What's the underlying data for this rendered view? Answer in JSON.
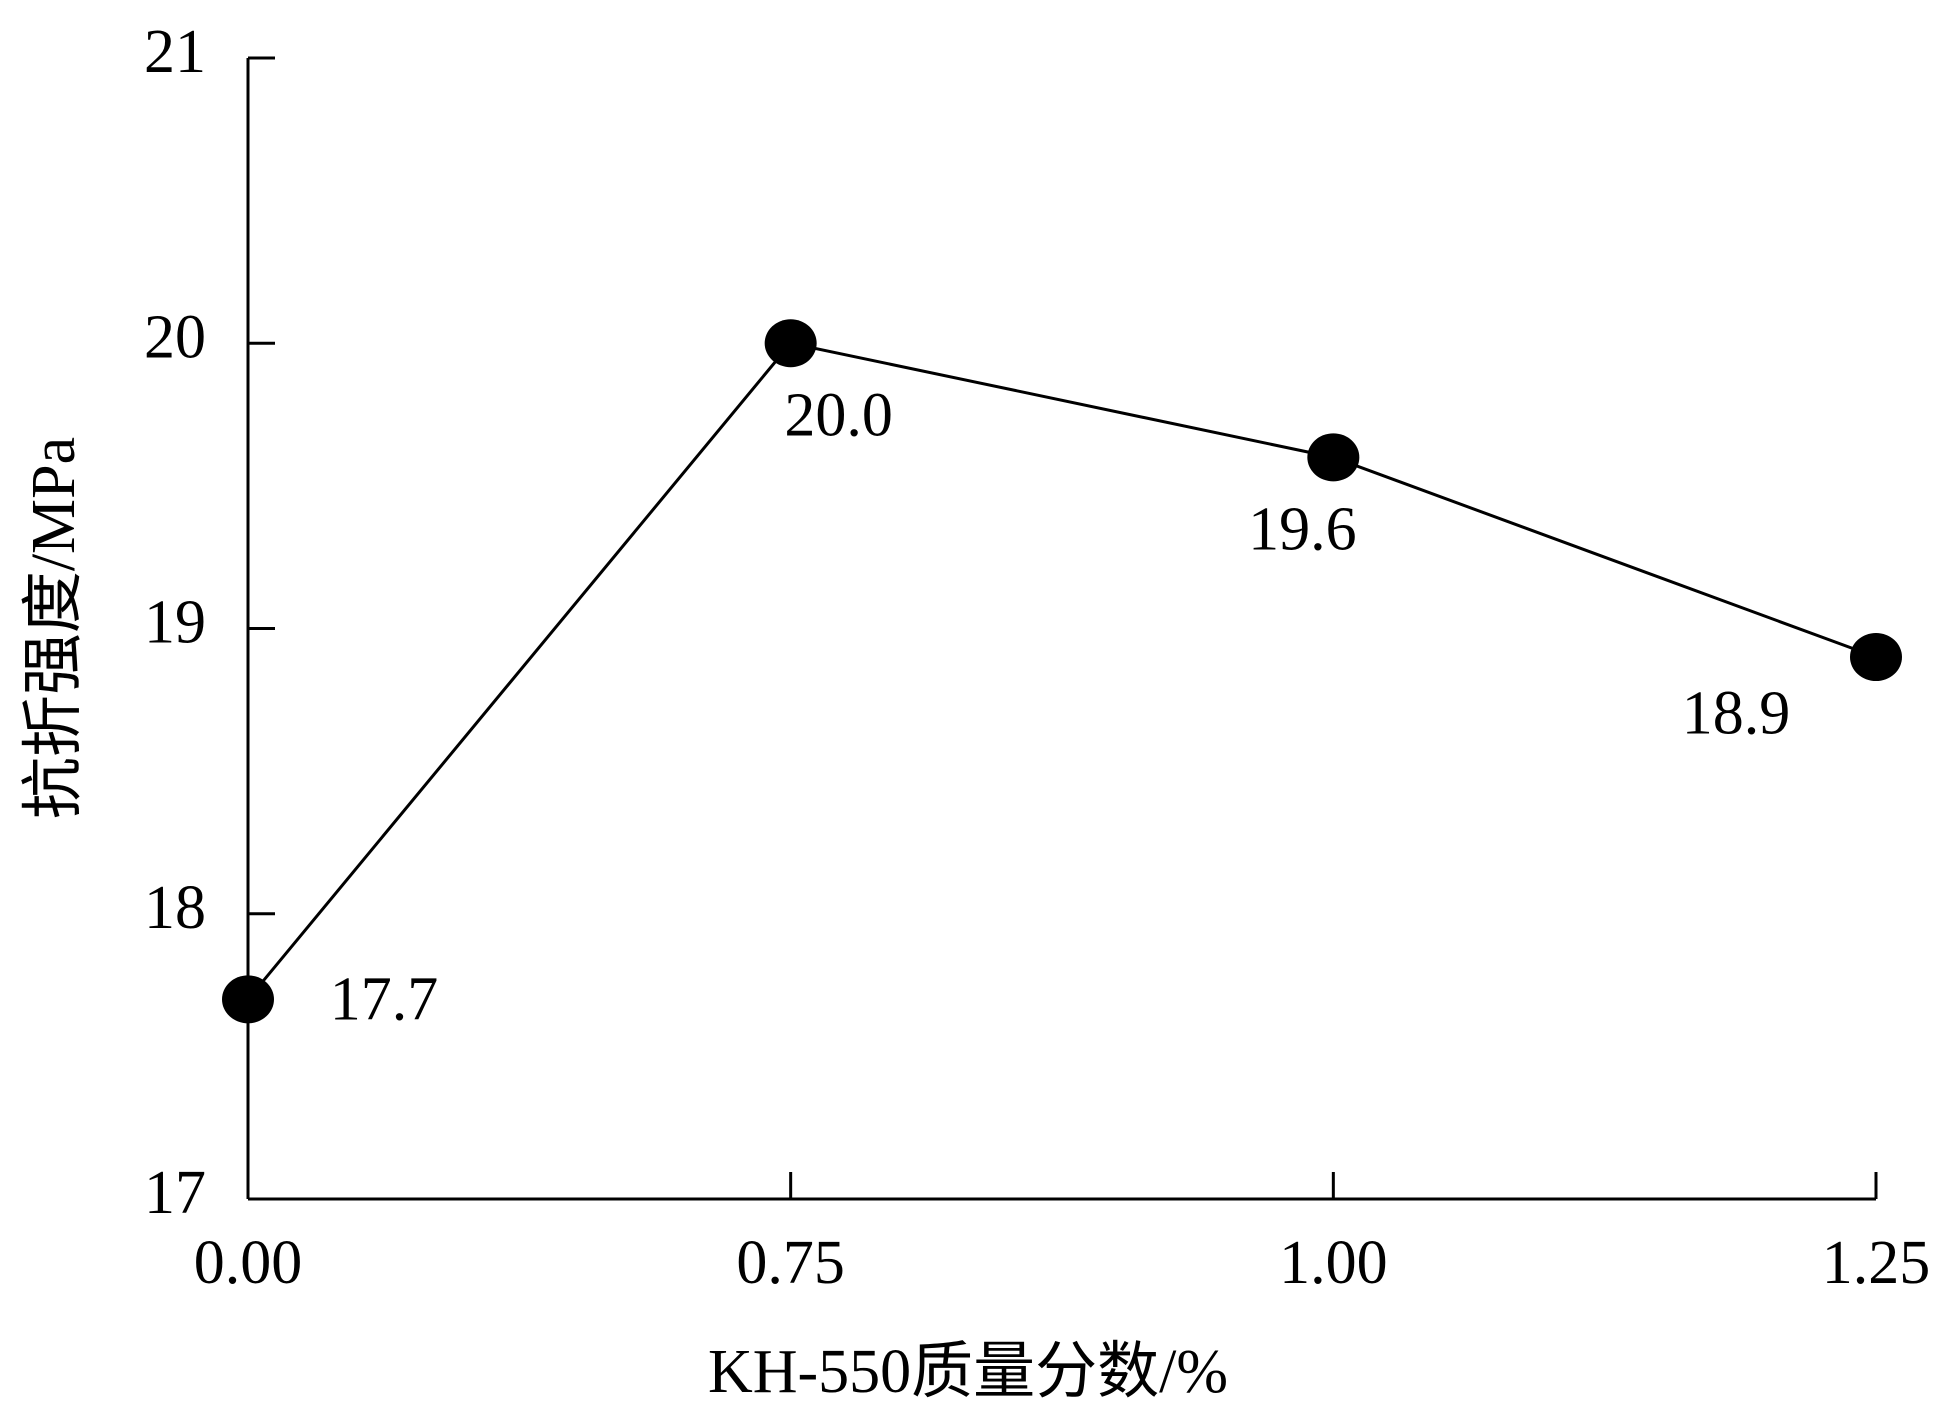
{
  "chart_data": {
    "type": "line",
    "x_label": "KH-550质量分数/%",
    "y_label": "抗折强度/MPa",
    "categories": [
      "0.00",
      "0.75",
      "1.00",
      "1.25"
    ],
    "values": [
      17.7,
      20,
      19.6,
      18.9
    ],
    "value_labels": [
      "17.7",
      "20.0",
      "19.6",
      "18.9"
    ],
    "color": "#000000",
    "ylim": [
      17,
      21
    ],
    "yticks": [
      17,
      18,
      19,
      20,
      21
    ]
  }
}
